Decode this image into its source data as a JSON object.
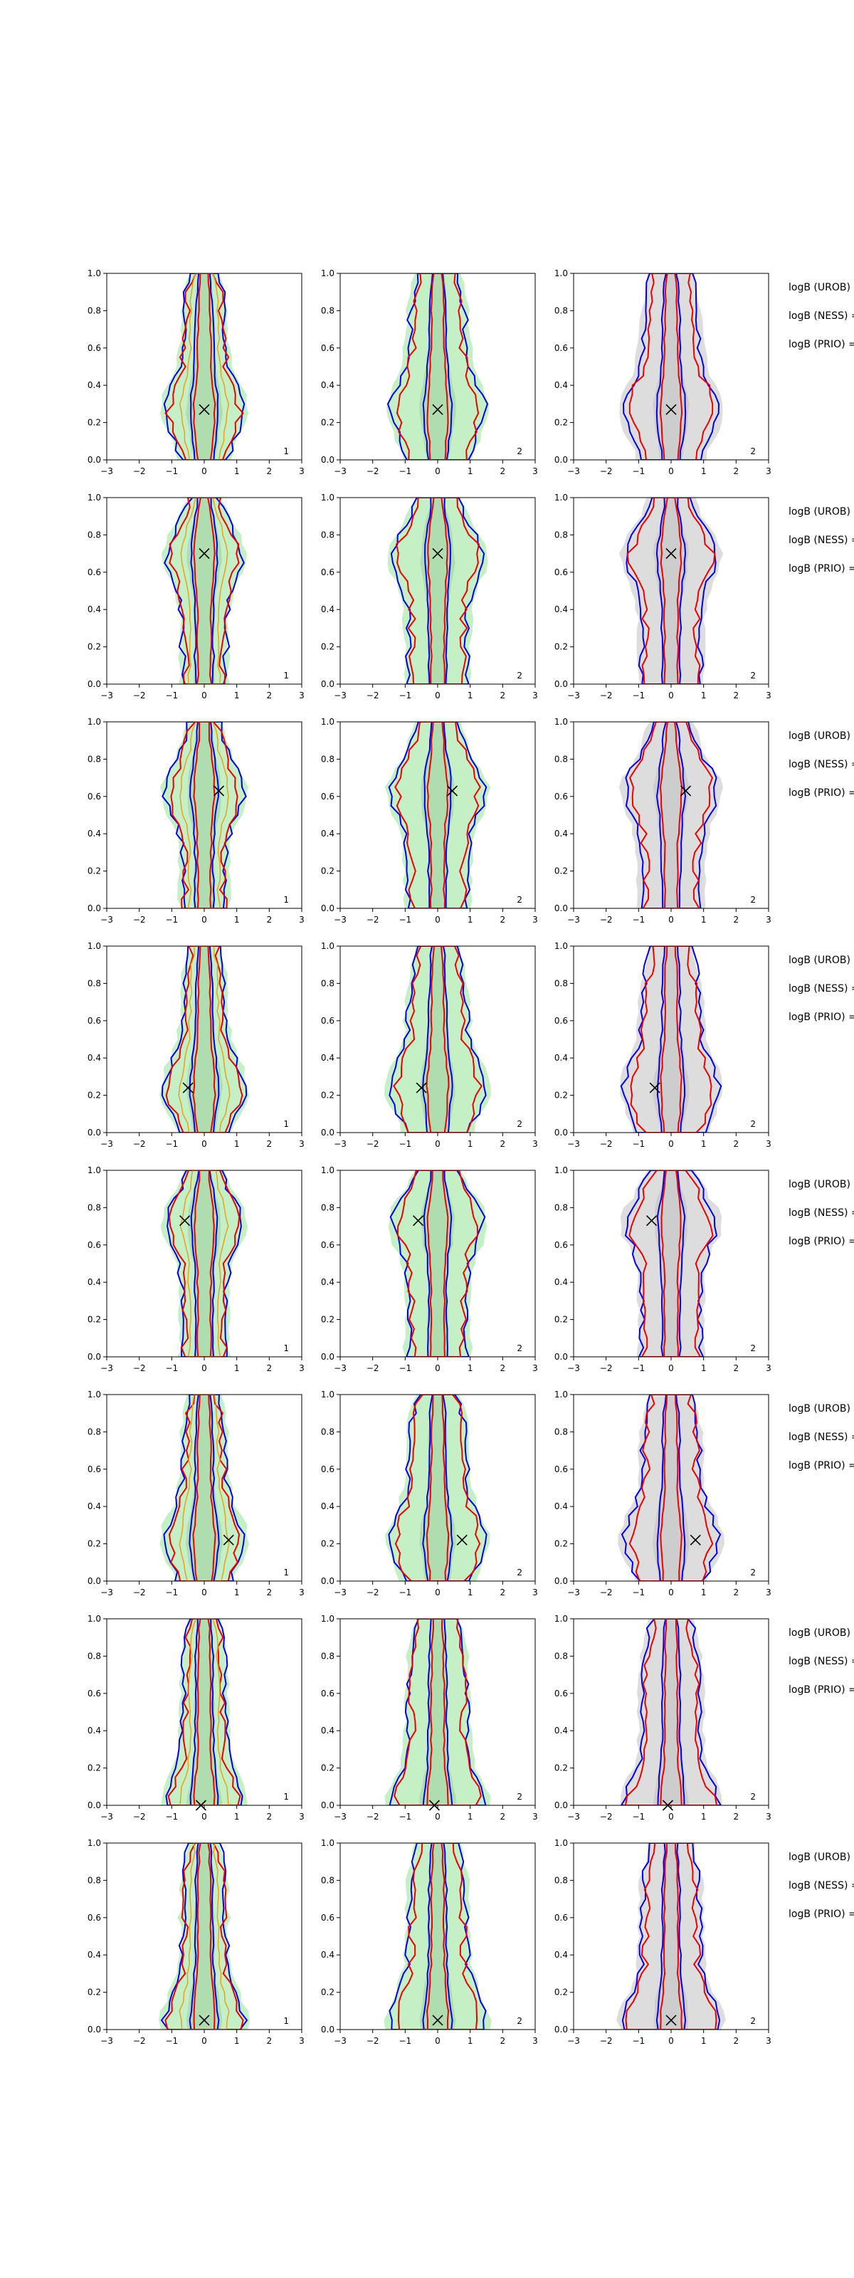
{
  "chart_data": {
    "type": "area",
    "title": "",
    "xlabel": "",
    "ylabel": "",
    "xlim": [
      -3,
      3
    ],
    "ylim": [
      0,
      1
    ],
    "x_ticks": [
      "−3",
      "−2",
      "−1",
      "0",
      "1",
      "2",
      "3"
    ],
    "y_ticks": [
      "0.0",
      "0.2",
      "0.4",
      "0.6",
      "0.8",
      "1.0"
    ],
    "grid": false,
    "legend": "none",
    "colors": {
      "blue_contour": "#0000ee",
      "red_contour": "#ee0000",
      "green_fill": "#bfeebf",
      "gray_fill": "#d9d9d9",
      "orange_line": "#e8a020",
      "marker": "#000000"
    },
    "row_labels": [
      "logB (UROB) =",
      "logB (NESS) =",
      "logB (PRIO) ="
    ],
    "column_tags": [
      "1",
      "2",
      "2"
    ],
    "rows": [
      {
        "marker": [
          0.0,
          0.27
        ]
      },
      {
        "marker": [
          0.0,
          0.7
        ]
      },
      {
        "marker": [
          0.45,
          0.63
        ]
      },
      {
        "marker": [
          -0.5,
          0.24
        ]
      },
      {
        "marker": [
          -0.6,
          0.73
        ]
      },
      {
        "marker": [
          0.75,
          0.22
        ]
      },
      {
        "marker": [
          -0.1,
          0.0
        ]
      },
      {
        "marker": [
          0.0,
          0.05
        ]
      }
    ]
  }
}
